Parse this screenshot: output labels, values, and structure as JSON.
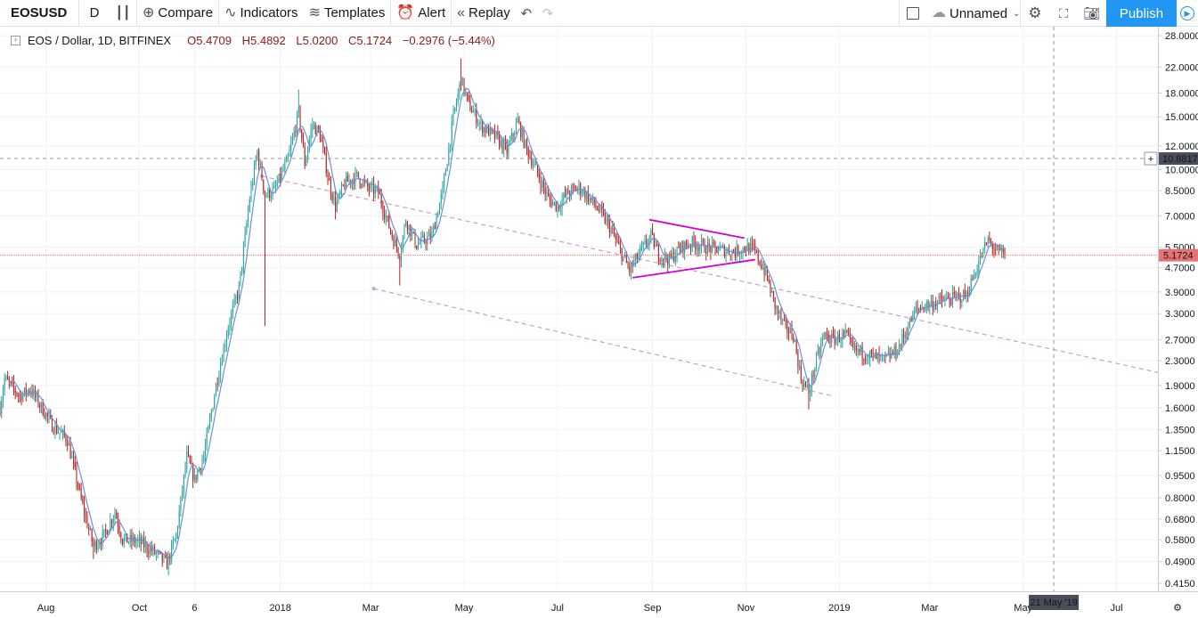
{
  "toolbar": {
    "symbol": "EOSUSD",
    "interval": "D",
    "compare": "Compare",
    "indicators": "Indicators",
    "templates": "Templates",
    "alert": "Alert",
    "replay": "Replay",
    "layout_name": "Unnamed",
    "publish": "Publish"
  },
  "legend": {
    "title": "EOS / Dollar, 1D, BITFINEX",
    "open": "O5.4709",
    "high": "H5.4892",
    "low": "L5.0200",
    "close": "C5.1724",
    "change": "−0.2976 (−5.44%)"
  },
  "price_axis": {
    "last_price_label": "5.1724",
    "crosshair_price_label": "10.8817"
  },
  "time_axis": {
    "crosshair_date_label": "21 May '19"
  },
  "colors": {
    "up": "#26a69a",
    "down": "#b22222",
    "ma_line": "#6b8fd8",
    "triangle": "#d500d5",
    "channel": "#c8a2c8",
    "last_price_line": "#e57373",
    "publish_bg": "#2196f3"
  },
  "chart_data": {
    "type": "candlestick",
    "symbol": "EOSUSD",
    "exchange": "BITFINEX",
    "interval": "1D",
    "y_scale": "log",
    "ylim": [
      0.39,
      30.0
    ],
    "xlim": [
      "2017-07-02",
      "2019-07-28"
    ],
    "y_ticks": [
      "28.0000",
      "22.0000",
      "18.0000",
      "15.0000",
      "12.0000",
      "10.0000",
      "8.5000",
      "7.0000",
      "5.5000",
      "4.7000",
      "3.9000",
      "3.3000",
      "2.7000",
      "2.3000",
      "1.9000",
      "1.6000",
      "1.3500",
      "1.1500",
      "0.9500",
      "0.8000",
      "0.6800",
      "0.5800",
      "0.4900",
      "0.4150"
    ],
    "x_ticks": [
      {
        "label": "Aug",
        "date": "2017-08-01"
      },
      {
        "label": "Oct",
        "date": "2017-10-01"
      },
      {
        "label": "6",
        "date": "2017-11-06"
      },
      {
        "label": "2018",
        "date": "2018-01-01"
      },
      {
        "label": "Mar",
        "date": "2018-03-01"
      },
      {
        "label": "May",
        "date": "2018-05-01"
      },
      {
        "label": "Jul",
        "date": "2018-07-01"
      },
      {
        "label": "Sep",
        "date": "2018-09-01"
      },
      {
        "label": "Nov",
        "date": "2018-11-01"
      },
      {
        "label": "2019",
        "date": "2019-01-01"
      },
      {
        "label": "Mar",
        "date": "2019-03-01"
      },
      {
        "label": "May",
        "date": "2019-05-01"
      },
      {
        "label": "Jul",
        "date": "2019-07-01"
      }
    ],
    "price_keypoints": [
      {
        "date": "2017-07-02",
        "price": 1.6
      },
      {
        "date": "2017-07-05",
        "price": 2.0
      },
      {
        "date": "2017-07-15",
        "price": 1.75
      },
      {
        "date": "2017-07-22",
        "price": 1.85
      },
      {
        "date": "2017-08-05",
        "price": 1.4
      },
      {
        "date": "2017-08-15",
        "price": 1.25
      },
      {
        "date": "2017-08-25",
        "price": 0.75
      },
      {
        "date": "2017-09-01",
        "price": 0.55
      },
      {
        "date": "2017-09-08",
        "price": 0.6
      },
      {
        "date": "2017-09-15",
        "price": 0.72
      },
      {
        "date": "2017-09-20",
        "price": 0.58
      },
      {
        "date": "2017-10-01",
        "price": 0.57
      },
      {
        "date": "2017-10-10",
        "price": 0.53
      },
      {
        "date": "2017-10-19",
        "price": 0.48
      },
      {
        "date": "2017-10-25",
        "price": 0.6
      },
      {
        "date": "2017-11-01",
        "price": 1.1
      },
      {
        "date": "2017-11-06",
        "price": 0.92
      },
      {
        "date": "2017-11-12",
        "price": 1.1
      },
      {
        "date": "2017-11-20",
        "price": 1.9
      },
      {
        "date": "2017-11-28",
        "price": 3.0
      },
      {
        "date": "2017-12-05",
        "price": 4.0
      },
      {
        "date": "2017-12-12",
        "price": 8.0
      },
      {
        "date": "2017-12-17",
        "price": 11.5
      },
      {
        "date": "2017-12-22",
        "price": 8.2
      },
      {
        "date": "2017-12-28",
        "price": 8.5
      },
      {
        "date": "2018-01-06",
        "price": 10.8
      },
      {
        "date": "2018-01-13",
        "price": 15.5
      },
      {
        "date": "2018-01-17",
        "price": 10.5
      },
      {
        "date": "2018-01-22",
        "price": 14.2
      },
      {
        "date": "2018-01-27",
        "price": 13.0
      },
      {
        "date": "2018-02-02",
        "price": 9.0
      },
      {
        "date": "2018-02-06",
        "price": 7.5
      },
      {
        "date": "2018-02-12",
        "price": 9.0
      },
      {
        "date": "2018-02-20",
        "price": 9.5
      },
      {
        "date": "2018-02-27",
        "price": 8.7
      },
      {
        "date": "2018-03-06",
        "price": 8.4
      },
      {
        "date": "2018-03-15",
        "price": 6.0
      },
      {
        "date": "2018-03-20",
        "price": 5.2
      },
      {
        "date": "2018-03-24",
        "price": 6.8
      },
      {
        "date": "2018-03-31",
        "price": 5.6
      },
      {
        "date": "2018-04-05",
        "price": 5.8
      },
      {
        "date": "2018-04-10",
        "price": 6.0
      },
      {
        "date": "2018-04-17",
        "price": 8.5
      },
      {
        "date": "2018-04-24",
        "price": 15.0
      },
      {
        "date": "2018-04-29",
        "price": 20.0
      },
      {
        "date": "2018-05-04",
        "price": 16.5
      },
      {
        "date": "2018-05-12",
        "price": 14.0
      },
      {
        "date": "2018-05-22",
        "price": 12.8
      },
      {
        "date": "2018-05-29",
        "price": 11.5
      },
      {
        "date": "2018-06-05",
        "price": 14.5
      },
      {
        "date": "2018-06-10",
        "price": 12.0
      },
      {
        "date": "2018-06-15",
        "price": 10.5
      },
      {
        "date": "2018-06-25",
        "price": 8.0
      },
      {
        "date": "2018-07-01",
        "price": 7.5
      },
      {
        "date": "2018-07-07",
        "price": 8.3
      },
      {
        "date": "2018-07-15",
        "price": 8.7
      },
      {
        "date": "2018-07-22",
        "price": 8.0
      },
      {
        "date": "2018-07-29",
        "price": 7.2
      },
      {
        "date": "2018-08-05",
        "price": 6.3
      },
      {
        "date": "2018-08-12",
        "price": 5.2
      },
      {
        "date": "2018-08-17",
        "price": 4.6
      },
      {
        "date": "2018-08-24",
        "price": 5.3
      },
      {
        "date": "2018-08-31",
        "price": 6.0
      },
      {
        "date": "2018-09-05",
        "price": 5.2
      },
      {
        "date": "2018-09-12",
        "price": 5.0
      },
      {
        "date": "2018-09-20",
        "price": 5.5
      },
      {
        "date": "2018-09-27",
        "price": 5.7
      },
      {
        "date": "2018-10-05",
        "price": 5.5
      },
      {
        "date": "2018-10-15",
        "price": 5.4
      },
      {
        "date": "2018-10-25",
        "price": 5.3
      },
      {
        "date": "2018-11-01",
        "price": 5.5
      },
      {
        "date": "2018-11-06",
        "price": 5.4
      },
      {
        "date": "2018-11-14",
        "price": 4.5
      },
      {
        "date": "2018-11-20",
        "price": 3.5
      },
      {
        "date": "2018-11-26",
        "price": 3.0
      },
      {
        "date": "2018-12-02",
        "price": 2.8
      },
      {
        "date": "2018-12-07",
        "price": 2.0
      },
      {
        "date": "2018-12-12",
        "price": 1.8
      },
      {
        "date": "2018-12-17",
        "price": 2.3
      },
      {
        "date": "2018-12-22",
        "price": 2.8
      },
      {
        "date": "2018-12-28",
        "price": 2.7
      },
      {
        "date": "2019-01-05",
        "price": 2.8
      },
      {
        "date": "2019-01-10",
        "price": 2.5
      },
      {
        "date": "2019-01-20",
        "price": 2.4
      },
      {
        "date": "2019-01-30",
        "price": 2.3
      },
      {
        "date": "2019-02-08",
        "price": 2.5
      },
      {
        "date": "2019-02-15",
        "price": 3.0
      },
      {
        "date": "2019-02-20",
        "price": 3.4
      },
      {
        "date": "2019-02-25",
        "price": 3.5
      },
      {
        "date": "2019-03-05",
        "price": 3.6
      },
      {
        "date": "2019-03-15",
        "price": 3.7
      },
      {
        "date": "2019-03-25",
        "price": 3.8
      },
      {
        "date": "2019-04-02",
        "price": 4.9
      },
      {
        "date": "2019-04-08",
        "price": 5.8
      },
      {
        "date": "2019-04-14",
        "price": 5.3
      },
      {
        "date": "2019-04-19",
        "price": 5.2
      }
    ],
    "last_close": 5.1724,
    "moving_average": {
      "type": "SMA"
    },
    "drawings": [
      {
        "type": "trend_line",
        "dashed": true,
        "points": [
          {
            "date": "2017-12-20",
            "price": 9.5
          },
          {
            "date": "2019-07-28",
            "price": 2.1
          }
        ]
      },
      {
        "type": "trend_line",
        "dashed": true,
        "points": [
          {
            "date": "2018-03-03",
            "price": 4.0
          },
          {
            "date": "2018-12-28",
            "price": 1.75
          }
        ]
      },
      {
        "type": "triangle_upper",
        "points": [
          {
            "date": "2018-08-30",
            "price": 6.8
          },
          {
            "date": "2018-10-31",
            "price": 5.9
          }
        ]
      },
      {
        "type": "triangle_lower",
        "points": [
          {
            "date": "2018-08-19",
            "price": 4.35
          },
          {
            "date": "2018-11-07",
            "price": 5.0
          }
        ]
      },
      {
        "type": "horizontal_line",
        "price": 10.8817
      },
      {
        "type": "vertical_line",
        "date": "2019-05-21"
      }
    ]
  }
}
